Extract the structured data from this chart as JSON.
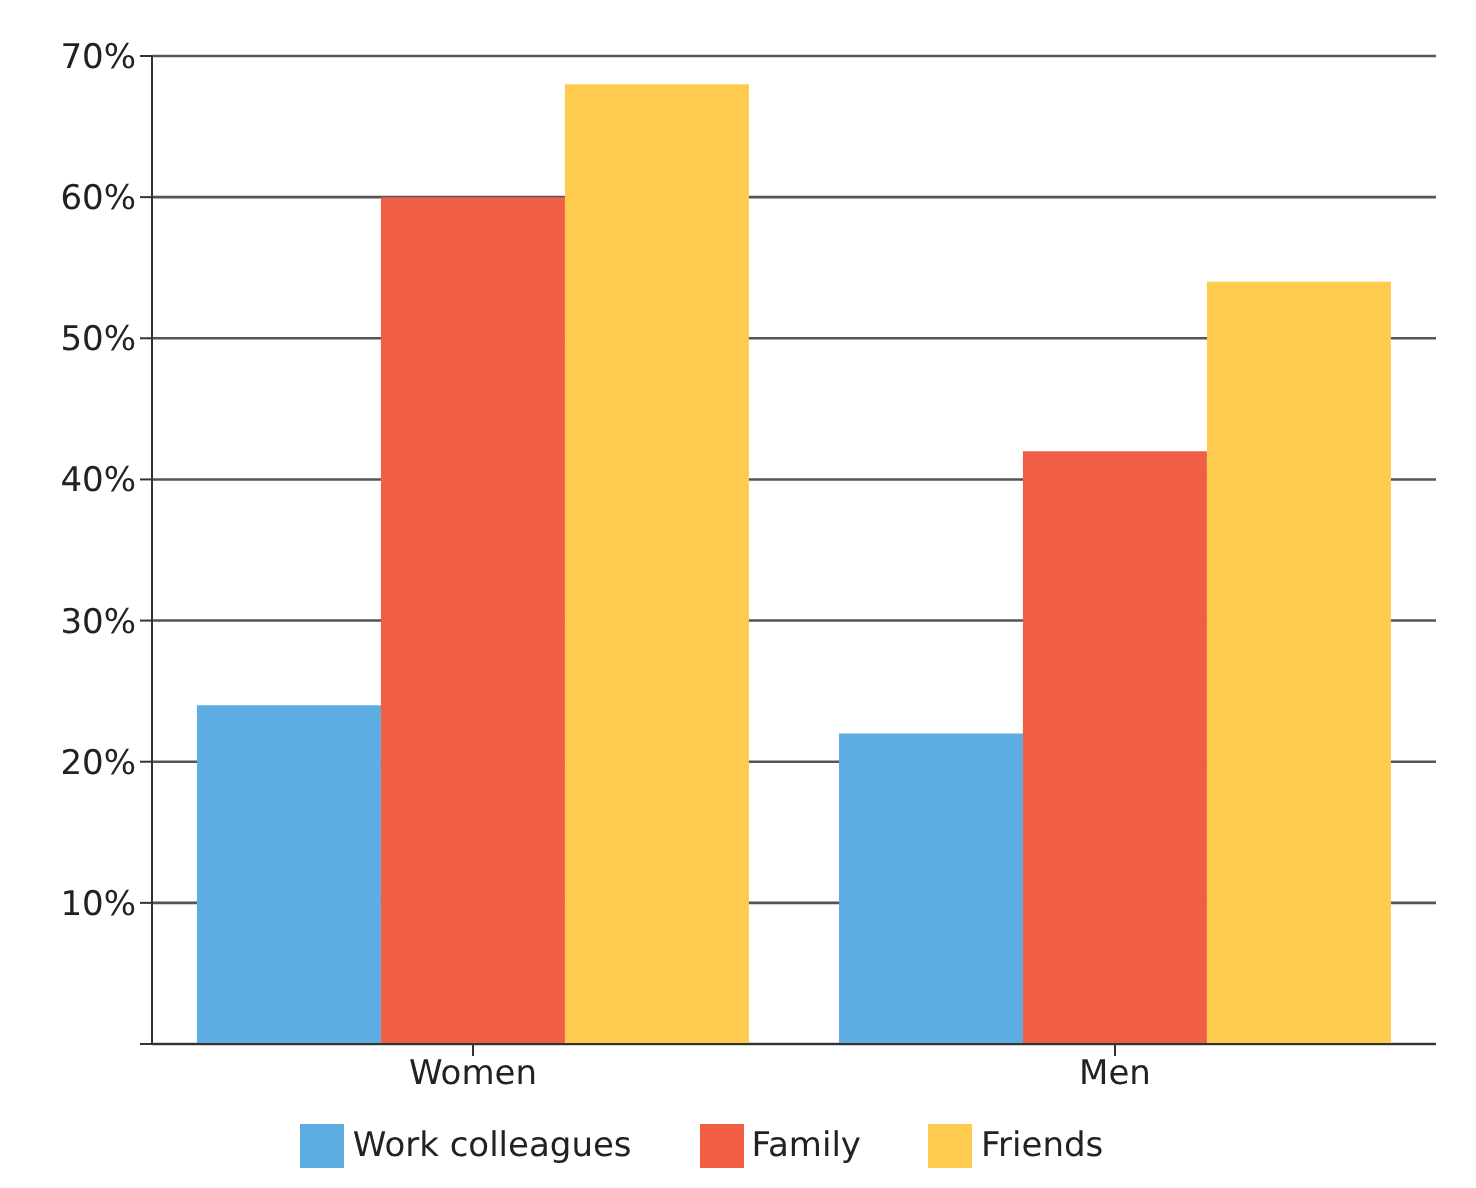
{
  "chart_data": {
    "type": "bar",
    "categories": [
      "Women",
      "Men"
    ],
    "series": [
      {
        "name": "Work colleagues",
        "color": "#5dade2",
        "values": [
          24,
          22
        ]
      },
      {
        "name": "Family",
        "color": "#f05f45",
        "values": [
          60,
          42
        ]
      },
      {
        "name": "Friends",
        "color": "#fecb4f",
        "values": [
          68,
          54
        ]
      }
    ],
    "ylim": [
      0,
      70
    ],
    "yticks": [
      {
        "value": 0,
        "label": null
      },
      {
        "value": 10,
        "label": "10%"
      },
      {
        "value": 20,
        "label": "20%"
      },
      {
        "value": 30,
        "label": "30%"
      },
      {
        "value": 40,
        "label": "40%"
      },
      {
        "value": 50,
        "label": "50%"
      },
      {
        "value": 60,
        "label": "60%"
      },
      {
        "value": 70,
        "label": "70%"
      }
    ],
    "grid": "y",
    "legend": "bottom"
  }
}
